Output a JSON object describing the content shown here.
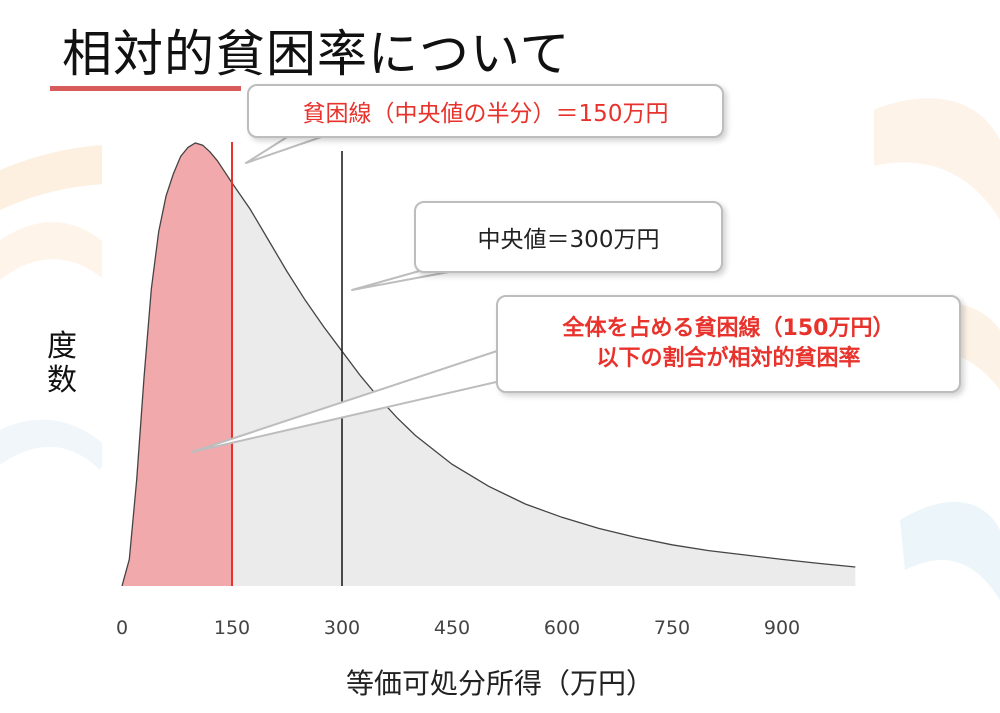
{
  "page": {
    "title": "相対的貧困率について"
  },
  "colors": {
    "accent_red": "#e8322c",
    "poverty_fill": "#f2a9ab",
    "dist_fill": "#ebebeb",
    "median_line": "#222222"
  },
  "chart_data": {
    "type": "area",
    "xlabel": "等価可処分所得（万円）",
    "ylabel": "度数",
    "x_ticks": [
      "0",
      "150",
      "300",
      "450",
      "600",
      "750",
      "900"
    ],
    "xlim": [
      -10,
      1000
    ],
    "curve": [
      {
        "x": 0,
        "y": 0.0
      },
      {
        "x": 10,
        "y": 0.06
      },
      {
        "x": 20,
        "y": 0.24
      },
      {
        "x": 30,
        "y": 0.47
      },
      {
        "x": 40,
        "y": 0.67
      },
      {
        "x": 50,
        "y": 0.8
      },
      {
        "x": 60,
        "y": 0.88
      },
      {
        "x": 70,
        "y": 0.93
      },
      {
        "x": 80,
        "y": 0.97
      },
      {
        "x": 90,
        "y": 0.99
      },
      {
        "x": 100,
        "y": 1.0
      },
      {
        "x": 110,
        "y": 0.995
      },
      {
        "x": 120,
        "y": 0.98
      },
      {
        "x": 130,
        "y": 0.96
      },
      {
        "x": 140,
        "y": 0.935
      },
      {
        "x": 150,
        "y": 0.91
      },
      {
        "x": 175,
        "y": 0.85
      },
      {
        "x": 200,
        "y": 0.78
      },
      {
        "x": 225,
        "y": 0.71
      },
      {
        "x": 250,
        "y": 0.645
      },
      {
        "x": 275,
        "y": 0.585
      },
      {
        "x": 300,
        "y": 0.53
      },
      {
        "x": 325,
        "y": 0.475
      },
      {
        "x": 350,
        "y": 0.425
      },
      {
        "x": 375,
        "y": 0.38
      },
      {
        "x": 400,
        "y": 0.34
      },
      {
        "x": 450,
        "y": 0.275
      },
      {
        "x": 500,
        "y": 0.225
      },
      {
        "x": 550,
        "y": 0.185
      },
      {
        "x": 600,
        "y": 0.155
      },
      {
        "x": 650,
        "y": 0.13
      },
      {
        "x": 700,
        "y": 0.11
      },
      {
        "x": 750,
        "y": 0.093
      },
      {
        "x": 800,
        "y": 0.08
      },
      {
        "x": 850,
        "y": 0.07
      },
      {
        "x": 900,
        "y": 0.06
      },
      {
        "x": 950,
        "y": 0.051
      },
      {
        "x": 1000,
        "y": 0.043
      }
    ],
    "poverty_line": 150,
    "median": 300,
    "annotations": {
      "poverty_line_label": "貧困線（中央値の半分）＝150万円",
      "median_label": "中央値＝300万円",
      "rate_line1": "全体を占める貧困線（150万円）",
      "rate_line2": "以下の割合が相対的貧困率"
    }
  }
}
